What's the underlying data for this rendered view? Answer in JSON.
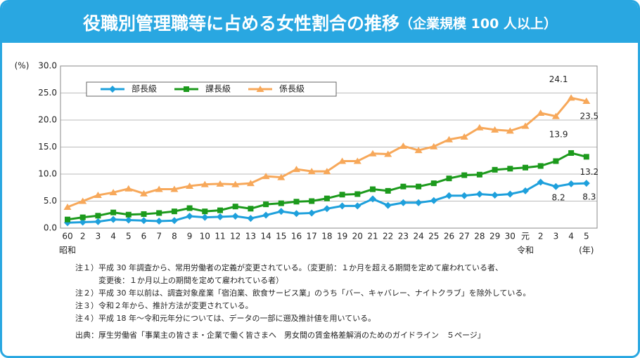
{
  "header": {
    "title": "役職別管理職等に占める女性割合の推移",
    "subtitle": "（企業規模 100 人以上）"
  },
  "chart_data": {
    "type": "line",
    "y_label": "(%)",
    "categories": [
      "60",
      "2",
      "3",
      "4",
      "5",
      "6",
      "7",
      "8",
      "9",
      "10",
      "11",
      "12",
      "13",
      "14",
      "15",
      "16",
      "17",
      "18",
      "19",
      "20",
      "21",
      "22",
      "23",
      "24",
      "25",
      "26",
      "27",
      "28",
      "29",
      "30",
      "元",
      "2",
      "3",
      "4",
      "5"
    ],
    "era_labels": [
      "昭和",
      "令和"
    ],
    "x_unit": "(年)",
    "ylim": [
      0,
      30
    ],
    "yticks": [
      {
        "value": 0,
        "label": "0.0"
      },
      {
        "value": 5,
        "label": "5.0"
      },
      {
        "value": 10,
        "label": "10.0"
      },
      {
        "value": 15,
        "label": "15.0"
      },
      {
        "value": 20,
        "label": "20.0"
      },
      {
        "value": 25,
        "label": "25.0"
      },
      {
        "value": 30,
        "label": "30.0"
      }
    ],
    "grid": true,
    "series": [
      {
        "name": "部長級",
        "color": "#1ea0dc",
        "marker": "diamond",
        "values": [
          1.0,
          1.1,
          1.2,
          1.6,
          1.5,
          1.4,
          1.3,
          1.4,
          2.2,
          2.0,
          2.1,
          2.2,
          1.8,
          2.4,
          3.1,
          2.7,
          2.8,
          3.6,
          4.1,
          4.1,
          5.4,
          4.2,
          4.7,
          4.7,
          5.1,
          6.0,
          6.0,
          6.3,
          6.1,
          6.3,
          6.9,
          8.5,
          7.7,
          8.2,
          8.3
        ]
      },
      {
        "name": "課長級",
        "color": "#1c9a1c",
        "marker": "square",
        "values": [
          1.6,
          2.0,
          2.3,
          2.9,
          2.5,
          2.6,
          2.8,
          3.1,
          3.7,
          3.1,
          3.3,
          4.0,
          3.6,
          4.4,
          4.6,
          4.9,
          5.0,
          5.5,
          6.2,
          6.3,
          7.2,
          6.9,
          7.7,
          7.7,
          8.3,
          9.2,
          9.8,
          9.9,
          10.8,
          11.0,
          11.2,
          11.5,
          12.4,
          13.9,
          13.2
        ]
      },
      {
        "name": "係長級",
        "color": "#f7a85a",
        "marker": "triangle",
        "values": [
          3.9,
          5.0,
          6.1,
          6.6,
          7.3,
          6.4,
          7.2,
          7.2,
          7.8,
          8.1,
          8.2,
          8.1,
          8.3,
          9.6,
          9.4,
          10.9,
          10.5,
          10.5,
          12.4,
          12.4,
          13.8,
          13.7,
          15.2,
          14.4,
          15.1,
          16.4,
          16.9,
          18.6,
          18.2,
          18.0,
          18.9,
          21.3,
          20.7,
          24.1,
          23.5
        ]
      }
    ]
  },
  "notes": [
    "注１）平成 30 年調査から、常用労働者の定義が変更されている。（変更前：１か月を超える期間を定めて雇われている者、",
    "　　　変更後：１か月以上の期間を定めて雇われている者）",
    "注２）平成 30 年以前は、調査対象産業「宿泊業、飲食サービス業」のうち「バー、キャバレー、ナイトクラブ」を除外している。",
    "注３）令和２年から、推計方法が変更されている。",
    "注４）平成 18 年～令和元年分については、データの一部に遡及推計値を用いている。"
  ],
  "source": "出典：厚生労働省「事業主の皆さま・企業で働く皆さまへ　男女間の賃金格差解消のためのガイドライン　５ページ」"
}
